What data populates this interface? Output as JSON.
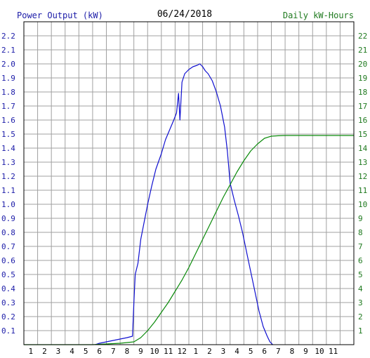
{
  "chart_data": {
    "type": "line",
    "title": "06/24/2018",
    "left_axis_label": "Power Output (kW)",
    "right_axis_label": "Daily kW-Hours",
    "x_tick_labels": [
      "1",
      "2",
      "3",
      "4",
      "5",
      "6",
      "7",
      "8",
      "9",
      "10",
      "11",
      "12",
      "1",
      "2",
      "3",
      "4",
      "5",
      "6",
      "7",
      "8",
      "9",
      "10",
      "11"
    ],
    "left_ticks": [
      "0.1",
      "0.2",
      "0.3",
      "0.4",
      "0.5",
      "0.6",
      "0.7",
      "0.8",
      "0.9",
      "1.0",
      "1.1",
      "1.2",
      "1.3",
      "1.4",
      "1.5",
      "1.6",
      "1.7",
      "1.8",
      "1.9",
      "2.0",
      "2.1",
      "2.2"
    ],
    "right_ticks": [
      "1",
      "2",
      "3",
      "4",
      "5",
      "6",
      "7",
      "8",
      "9",
      "10",
      "11",
      "12",
      "13",
      "14",
      "15",
      "16",
      "17",
      "18",
      "19",
      "20",
      "21",
      "22"
    ],
    "xlim": [
      0,
      24
    ],
    "ylim_left": [
      0,
      2.3
    ],
    "ylim_right": [
      0,
      23
    ],
    "grid": true,
    "colors": {
      "left_axis_text": "#1c1ca8",
      "right_axis_text": "#1f7a1f",
      "power_line": "#1010d0",
      "energy_line": "#0a8a0a",
      "grid": "#a0a0a0",
      "title_text": "#000000"
    },
    "series": [
      {
        "name": "Power Output (kW)",
        "axis": "left",
        "points": [
          [
            5.2,
            0.0
          ],
          [
            5.5,
            0.01
          ],
          [
            6.0,
            0.02
          ],
          [
            6.5,
            0.03
          ],
          [
            7.0,
            0.04
          ],
          [
            7.5,
            0.05
          ],
          [
            7.9,
            0.06
          ],
          [
            8.0,
            0.3
          ],
          [
            8.1,
            0.5
          ],
          [
            8.3,
            0.58
          ],
          [
            8.5,
            0.75
          ],
          [
            8.7,
            0.85
          ],
          [
            9.0,
            1.0
          ],
          [
            9.3,
            1.13
          ],
          [
            9.6,
            1.25
          ],
          [
            10.0,
            1.36
          ],
          [
            10.3,
            1.46
          ],
          [
            10.6,
            1.53
          ],
          [
            10.9,
            1.6
          ],
          [
            11.1,
            1.65
          ],
          [
            11.25,
            1.79
          ],
          [
            11.35,
            1.6
          ],
          [
            11.5,
            1.87
          ],
          [
            11.7,
            1.93
          ],
          [
            12.0,
            1.96
          ],
          [
            12.3,
            1.98
          ],
          [
            12.6,
            1.99
          ],
          [
            12.8,
            2.0
          ],
          [
            13.0,
            1.98
          ],
          [
            13.2,
            1.95
          ],
          [
            13.4,
            1.93
          ],
          [
            13.7,
            1.88
          ],
          [
            14.0,
            1.8
          ],
          [
            14.3,
            1.7
          ],
          [
            14.6,
            1.55
          ],
          [
            14.8,
            1.38
          ],
          [
            15.0,
            1.15
          ],
          [
            15.3,
            1.03
          ],
          [
            15.6,
            0.92
          ],
          [
            15.9,
            0.8
          ],
          [
            16.2,
            0.66
          ],
          [
            16.5,
            0.52
          ],
          [
            16.8,
            0.38
          ],
          [
            17.1,
            0.24
          ],
          [
            17.4,
            0.13
          ],
          [
            17.7,
            0.06
          ],
          [
            17.9,
            0.02
          ],
          [
            18.1,
            0.0
          ]
        ]
      },
      {
        "name": "Daily kW-Hours",
        "axis": "right",
        "points": [
          [
            0,
            0
          ],
          [
            5.0,
            0.0
          ],
          [
            6.0,
            0.05
          ],
          [
            7.0,
            0.1
          ],
          [
            8.0,
            0.2
          ],
          [
            8.5,
            0.5
          ],
          [
            9.0,
            1.0
          ],
          [
            9.5,
            1.6
          ],
          [
            10.0,
            2.3
          ],
          [
            10.5,
            3.0
          ],
          [
            11.0,
            3.8
          ],
          [
            11.5,
            4.6
          ],
          [
            12.0,
            5.5
          ],
          [
            12.5,
            6.5
          ],
          [
            13.0,
            7.5
          ],
          [
            13.5,
            8.5
          ],
          [
            14.0,
            9.5
          ],
          [
            14.5,
            10.5
          ],
          [
            15.0,
            11.4
          ],
          [
            15.5,
            12.3
          ],
          [
            16.0,
            13.1
          ],
          [
            16.5,
            13.8
          ],
          [
            17.0,
            14.3
          ],
          [
            17.5,
            14.7
          ],
          [
            18.0,
            14.85
          ],
          [
            18.5,
            14.88
          ],
          [
            19.0,
            14.9
          ],
          [
            24.0,
            14.9
          ]
        ]
      }
    ]
  }
}
